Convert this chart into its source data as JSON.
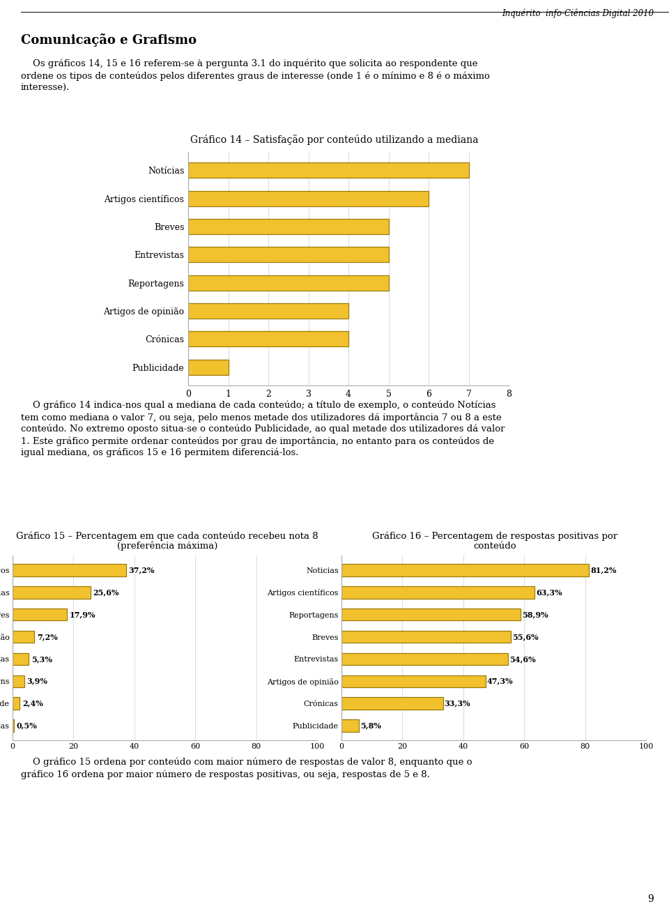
{
  "page_title": "Inquérito  info-Ciências Digital 2010",
  "section_title": "Comunicação e Grafismo",
  "intro_lines": [
    "    Os gráficos 14, 15 e 16 referem-se à pergunta 3.1 do inquérito que solicita ao respondente que",
    "ordene os tipos de conteúdos pelos diferentes graus de interesse (onde 1 é o mínimo e 8 é o máximo",
    "interesse)."
  ],
  "graf14_title_bold": "Gráfico 14",
  "graf14_title_normal": " – Satisfação por conteúdo utilizando a mediana",
  "graf14_categories": [
    "Notícias",
    "Artigos científicos",
    "Breves",
    "Entrevistas",
    "Reportagens",
    "Artigos de opinião",
    "Crónicas",
    "Publicidade"
  ],
  "graf14_values": [
    7,
    6,
    5,
    5,
    5,
    4,
    4,
    1
  ],
  "graf14_xlim": [
    0,
    8
  ],
  "graf14_xticks": [
    0,
    1,
    2,
    3,
    4,
    5,
    6,
    7,
    8
  ],
  "graf15_title_bold": "Gráfico 15",
  "graf15_title_normal": " – Percentagem em que cada conteúdo recebeu nota 8",
  "graf15_title_line2": "(preferência máxima)",
  "graf15_categories": [
    "Artigos científicos",
    "Notícias",
    "Breves",
    "Artigos de opinião",
    "Entrevistas",
    "Reportagens",
    "Publicidade",
    "Crónicas"
  ],
  "graf15_values": [
    37.2,
    25.6,
    17.9,
    7.2,
    5.3,
    3.9,
    2.4,
    0.5
  ],
  "graf15_labels": [
    "37,2%",
    "25,6%",
    "17,9%",
    "7,2%",
    "5,3%",
    "3,9%",
    "2,4%",
    "0,5%"
  ],
  "graf15_xlim": [
    0,
    100
  ],
  "graf15_xticks": [
    0,
    20,
    40,
    60,
    80,
    100
  ],
  "graf16_title_bold": "Gráfico 16",
  "graf16_title_normal": " – Percentagem de respostas positivas por",
  "graf16_title_line2": "conteúdo",
  "graf16_categories": [
    "Noticias",
    "Artigos científicos",
    "Reportagens",
    "Breves",
    "Entrevistas",
    "Artigos de opinião",
    "Crónicas",
    "Publicidade"
  ],
  "graf16_values": [
    81.2,
    63.3,
    58.9,
    55.6,
    54.6,
    47.3,
    33.3,
    5.8
  ],
  "graf16_labels": [
    "81,2%",
    "63,3%",
    "58,9%",
    "55,6%",
    "54,6%",
    "47,3%",
    "33,3%",
    "5,8%"
  ],
  "graf16_xlim": [
    0,
    100
  ],
  "graf16_xticks": [
    0,
    20,
    40,
    60,
    80,
    100
  ],
  "bar_color": "#F2C12E",
  "bar_edge_color": "#9A7D0A",
  "chart_bg": "#FFFFFF",
  "chart_border": "#AAAAAA",
  "explain14_lines": [
    "    O gráfico 14 indica-nos qual a mediana de cada conteúdo; a título de exemplo, o conteúdo Notícias",
    "tem como mediana o valor 7, ou seja, pelo menos metade dos utilizadores dá importância 7 ou 8 a este",
    "conteúdo. No extremo oposto situa-se o conteúdo Publicidade, ao qual metade dos utilizadores dá valor",
    "1. Este gráfico permite ordenar conteúdos por grau de importância, no entanto para os conteúdos de",
    "igual mediana, os gráficos 15 e 16 permitem diferenciá-los."
  ],
  "explain16_lines": [
    "    O gráfico 15 ordena por conteúdo com maior número de respostas de valor 8, enquanto que o",
    "gráfico 16 ordena por maior número de respostas positivas, ou seja, respostas de 5 e 8."
  ],
  "page_number": "9"
}
